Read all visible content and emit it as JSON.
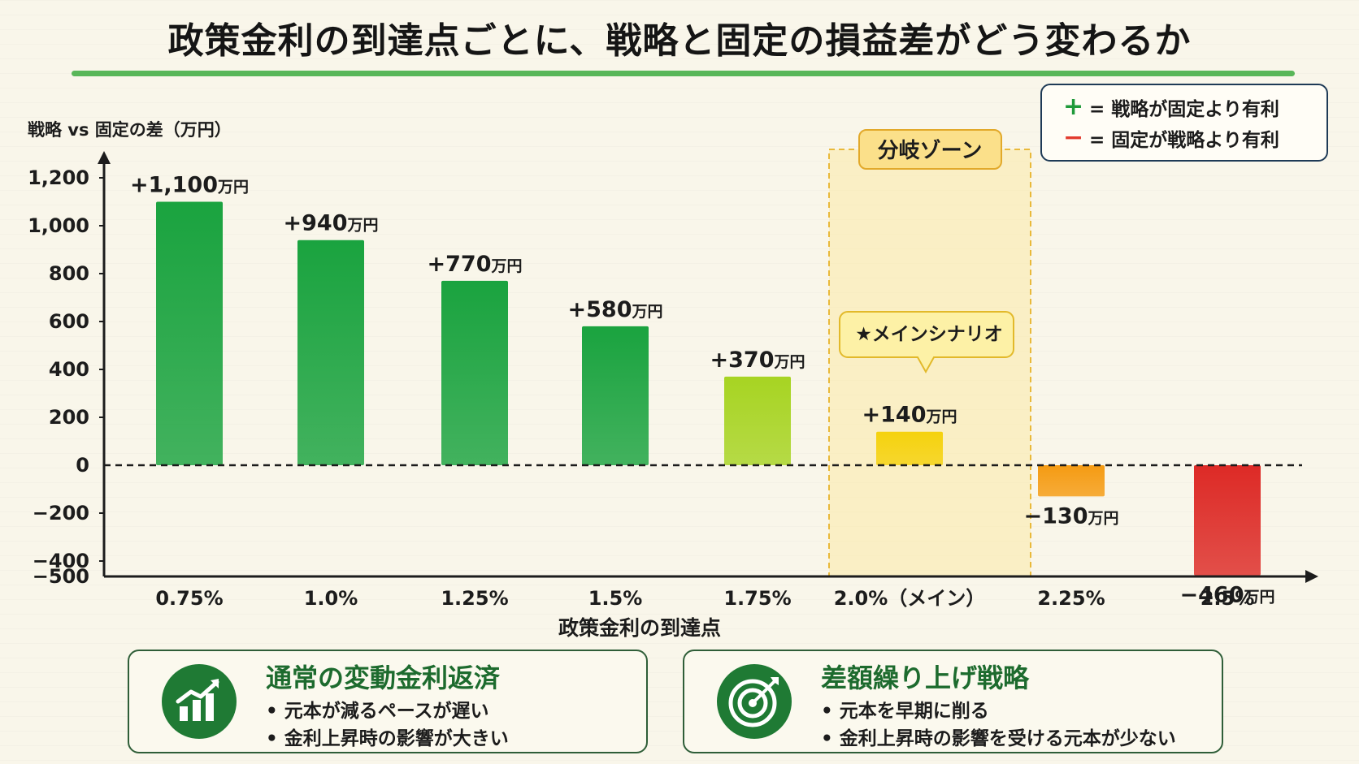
{
  "title": "政策金利の到達点ごとに、戦略と固定の損益差がどう変わるか",
  "legend": {
    "plus_symbol": "+",
    "plus_text": "= 戦略が固定より有利",
    "minus_symbol": "−",
    "minus_text": "= 固定が戦略より有利"
  },
  "chart_data": {
    "type": "bar",
    "ylabel": "戦略 vs 固定の差（万円）",
    "xlabel": "政策金利の到達点",
    "categories": [
      "0.75%",
      "1.0%",
      "1.25%",
      "1.5%",
      "1.75%",
      "2.0%（メイン）",
      "2.25%",
      "2.5%"
    ],
    "values": [
      1100,
      940,
      770,
      580,
      370,
      140,
      -130,
      -460
    ],
    "value_labels": [
      "+1,100",
      "+940",
      "+770",
      "+580",
      "+370",
      "+140",
      "−130",
      "−460"
    ],
    "value_unit": "万円",
    "yticks": [
      1200,
      1000,
      800,
      600,
      400,
      200,
      0,
      -200,
      -400,
      -500
    ],
    "ytick_labels": [
      "1,200",
      "1,000",
      "800",
      "600",
      "400",
      "200",
      "0",
      "−200",
      "−400",
      "−500"
    ],
    "ylim": [
      -500,
      1300
    ],
    "bar_colors": [
      "#1aa33f",
      "#1aa33f",
      "#1aa33f",
      "#1aa33f",
      "#a7d422",
      "#f5d20d",
      "#f59b12",
      "#dd2a26"
    ],
    "zero_line": "dashed",
    "highlight": {
      "label": "分岐ゾーン",
      "category": "2.0%（メイン）"
    },
    "callout": {
      "text": "★メインシナリオ",
      "category": "2.0%（メイン）"
    }
  },
  "cards": [
    {
      "icon": "chart-growth-icon",
      "title": "通常の変動金利返済",
      "bullets": [
        "• 元本が減るペースが遅い",
        "• 金利上昇時の影響が大きい"
      ]
    },
    {
      "icon": "target-icon",
      "title": "差額繰り上げ戦略",
      "bullets": [
        "• 元本を早期に削る",
        "• 金利上昇時の影響を受ける元本が少ない"
      ]
    }
  ]
}
